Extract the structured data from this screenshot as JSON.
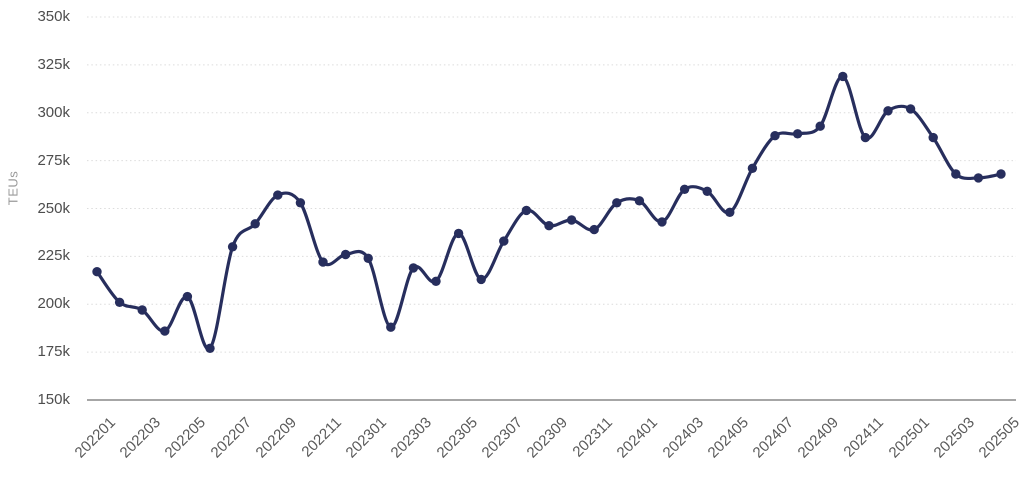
{
  "chart_data": {
    "type": "line",
    "title": "",
    "xlabel": "",
    "ylabel": "TEUs",
    "unit": "k",
    "legend": "none",
    "grid": "horizontal-dotted",
    "ylim": [
      150,
      350
    ],
    "x": [
      "202201",
      "202202",
      "202203",
      "202204",
      "202205",
      "202206",
      "202207",
      "202208",
      "202209",
      "202210",
      "202211",
      "202212",
      "202301",
      "202302",
      "202303",
      "202304",
      "202305",
      "202306",
      "202307",
      "202308",
      "202309",
      "202310",
      "202311",
      "202312",
      "202401",
      "202402",
      "202403",
      "202404",
      "202405",
      "202406",
      "202407",
      "202408",
      "202409",
      "202410",
      "202411",
      "202412",
      "202501",
      "202502",
      "202503",
      "202504",
      "202505"
    ],
    "series": [
      {
        "name": "TEUs",
        "values": [
          217,
          201,
          197,
          186,
          204,
          177,
          230,
          242,
          257,
          253,
          222,
          226,
          224,
          188,
          219,
          212,
          237,
          213,
          233,
          249,
          241,
          244,
          239,
          253,
          254,
          243,
          260,
          259,
          248,
          271,
          288,
          289,
          293,
          319,
          287,
          301,
          302,
          287,
          268,
          266,
          268
        ]
      }
    ],
    "x_tick_labels": [
      "202201",
      "202203",
      "202205",
      "202207",
      "202209",
      "202211",
      "202301",
      "202303",
      "202305",
      "202307",
      "202309",
      "202311",
      "202401",
      "202403",
      "202405",
      "202407",
      "202409",
      "202411",
      "202501",
      "202503",
      "202505"
    ],
    "y_ticks": [
      {
        "value": 350,
        "label": "350k"
      },
      {
        "value": 325,
        "label": "325k"
      },
      {
        "value": 300,
        "label": "300k"
      },
      {
        "value": 275,
        "label": "275k"
      },
      {
        "value": 250,
        "label": "250k"
      },
      {
        "value": 225,
        "label": "225k"
      },
      {
        "value": 200,
        "label": "200k"
      },
      {
        "value": 175,
        "label": "175k"
      },
      {
        "value": 150,
        "label": "150k"
      }
    ],
    "colors": {
      "line": "#272E5D",
      "marker": "#272E5D",
      "grid": "#DCDCDC",
      "axis": "#888888",
      "y_tick_text": "#4d4d4d",
      "x_tick_text": "#595959",
      "axis_title_text": "#9a9a9a",
      "background": "#ffffff"
    }
  }
}
